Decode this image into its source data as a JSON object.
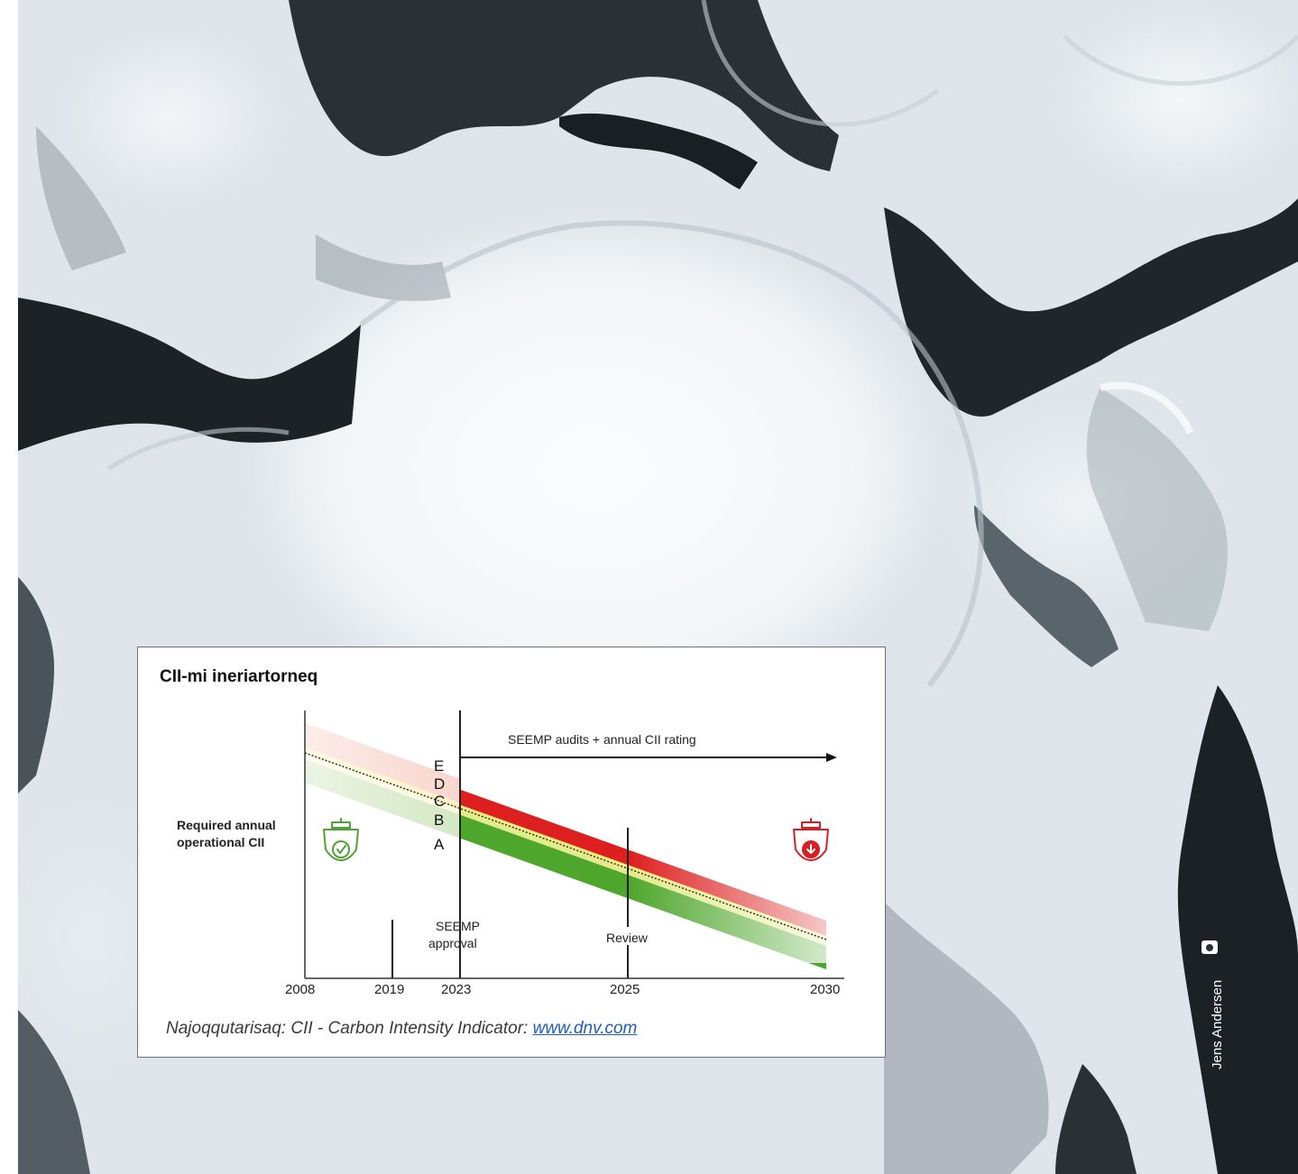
{
  "chart_data": {
    "type": "area",
    "title": "CII-mi ineriartorneq",
    "ylabel": [
      "Required annual",
      "operational CII"
    ],
    "xlabel": "",
    "x_ticks": [
      "2008",
      "2019",
      "2023",
      "2025",
      "2030"
    ],
    "xlim": [
      "2008",
      "2030"
    ],
    "band_letters": [
      "E",
      "D",
      "C",
      "B",
      "A"
    ],
    "annotations": {
      "arrow_label": "SEEMP audits + annual CII rating",
      "seemp_label": [
        "SEEMP",
        "approval"
      ],
      "review_label": "Review"
    },
    "markers": {
      "seemp_approval_year": "2023",
      "review_year": "2025",
      "reference_year": "2019"
    },
    "colors": {
      "A": "#52a72e",
      "B": "#c6e07a",
      "C": "#f5e96a",
      "D": "#f2b3a8",
      "E": "#dd1f1f"
    },
    "icons": {
      "left": "ship-check-icon",
      "right": "ship-down-icon"
    }
  },
  "caption": {
    "text": "Najoqqutarisaq: CII - Carbon Intensity Indicator: ",
    "link": "www.dnv.com"
  },
  "photo_credit": "Jens Andersen"
}
